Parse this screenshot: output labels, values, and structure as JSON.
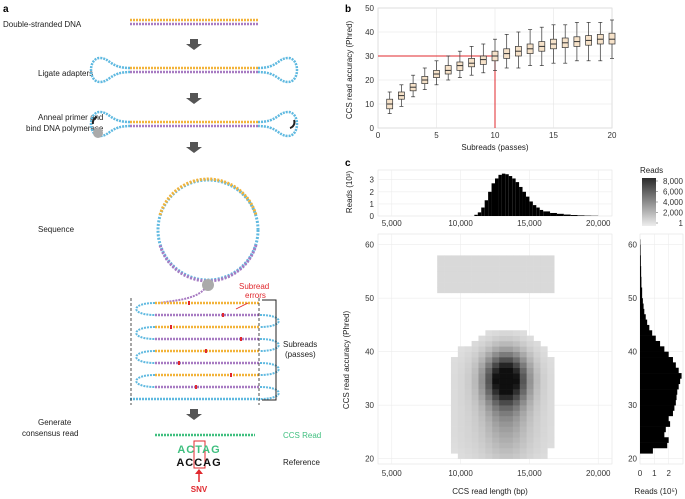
{
  "panel_labels": {
    "a": "a",
    "b": "b",
    "c": "c"
  },
  "panel_a": {
    "steps": [
      {
        "label": "Double-stranded DNA"
      },
      {
        "label": "Ligate adapters"
      },
      {
        "label_line1": "Anneal primer and",
        "label_line2": "bind DNA polymerase"
      },
      {
        "label": "Sequence"
      },
      {
        "label_line1": "Generate",
        "label_line2": "consensus read"
      }
    ],
    "subread_errors_line1": "Subread",
    "subread_errors_line2": "errors",
    "subreads_line1": "Subreads",
    "subreads_line2": "(passes)",
    "ccs_read_label": "CCS Read",
    "reference_label": "Reference",
    "ccs_seq": "ACTAG",
    "ref_seq": "ACCAG",
    "snv_label": "SNV",
    "colors": {
      "adapter": "#5fb9e0",
      "strand_top": "#f2b33a",
      "strand_bottom": "#a77ac2",
      "ccs": "#3fbf7f",
      "error": "#e0282e"
    }
  },
  "chart_data": [
    {
      "id": "b",
      "type": "box",
      "xlabel": "Subreads (passes)",
      "ylabel": "CCS read accuracy (Phred)",
      "xlim": [
        0,
        20
      ],
      "ylim": [
        0,
        50
      ],
      "xticks": [
        0,
        5,
        10,
        15,
        20
      ],
      "yticks": [
        0,
        10,
        20,
        30,
        40,
        50
      ],
      "reference_line": {
        "x": 10,
        "y": 30
      },
      "boxes": [
        {
          "x": 1,
          "low": 6,
          "q1": 8,
          "median": 10,
          "q3": 12,
          "high": 15
        },
        {
          "x": 2,
          "low": 9,
          "q1": 12,
          "median": 13.5,
          "q3": 15,
          "high": 18
        },
        {
          "x": 3,
          "low": 13,
          "q1": 15.5,
          "median": 17,
          "q3": 18.5,
          "high": 22
        },
        {
          "x": 4,
          "low": 16,
          "q1": 18.5,
          "median": 20,
          "q3": 21.5,
          "high": 25
        },
        {
          "x": 5,
          "low": 18,
          "q1": 21,
          "median": 22.5,
          "q3": 24,
          "high": 28
        },
        {
          "x": 6,
          "low": 20,
          "q1": 22.5,
          "median": 24,
          "q3": 26,
          "high": 30
        },
        {
          "x": 7,
          "low": 21,
          "q1": 24,
          "median": 26,
          "q3": 27.5,
          "high": 32
        },
        {
          "x": 8,
          "low": 22,
          "q1": 25.5,
          "median": 27,
          "q3": 29,
          "high": 34
        },
        {
          "x": 9,
          "low": 23,
          "q1": 26.5,
          "median": 28.5,
          "q3": 30,
          "high": 35
        },
        {
          "x": 10,
          "low": 24,
          "q1": 28,
          "median": 30,
          "q3": 32,
          "high": 37
        },
        {
          "x": 11,
          "low": 25,
          "q1": 29,
          "median": 31,
          "q3": 33,
          "high": 39
        },
        {
          "x": 12,
          "low": 25,
          "q1": 30,
          "median": 32,
          "q3": 34,
          "high": 40
        },
        {
          "x": 13,
          "low": 26,
          "q1": 31,
          "median": 33,
          "q3": 35,
          "high": 41
        },
        {
          "x": 14,
          "low": 26,
          "q1": 32,
          "median": 34,
          "q3": 36,
          "high": 42
        },
        {
          "x": 15,
          "low": 27,
          "q1": 33,
          "median": 35,
          "q3": 37,
          "high": 43
        },
        {
          "x": 16,
          "low": 27,
          "q1": 33.5,
          "median": 35.5,
          "q3": 37.5,
          "high": 43
        },
        {
          "x": 17,
          "low": 28,
          "q1": 34,
          "median": 36,
          "q3": 38,
          "high": 44
        },
        {
          "x": 18,
          "low": 28,
          "q1": 34.5,
          "median": 36.5,
          "q3": 38.5,
          "high": 44
        },
        {
          "x": 19,
          "low": 28,
          "q1": 35,
          "median": 37,
          "q3": 39,
          "high": 44
        },
        {
          "x": 20,
          "low": 29,
          "q1": 35,
          "median": 37,
          "q3": 39.5,
          "high": 45
        }
      ]
    },
    {
      "id": "c-top",
      "type": "histogram",
      "ylabel": "Reads (10³)",
      "xlim": [
        4000,
        21000
      ],
      "ylim": [
        0,
        3.8
      ],
      "xticks": [
        5000,
        10000,
        15000,
        20000
      ],
      "xticklabels": [
        "5,000",
        "10,000",
        "15,000",
        "20,000"
      ],
      "yticks": [
        0,
        1,
        2,
        3
      ],
      "x": [
        11000,
        11250,
        11500,
        11750,
        12000,
        12250,
        12500,
        12750,
        13000,
        13250,
        13500,
        13750,
        14000,
        14250,
        14500,
        14750,
        15000,
        15250,
        15500,
        15750,
        16000,
        16500,
        17000,
        17500,
        18000,
        18500,
        19000,
        19500
      ],
      "values": [
        0.1,
        0.3,
        0.7,
        1.3,
        2.0,
        2.7,
        3.1,
        3.4,
        3.5,
        3.45,
        3.3,
        3.1,
        2.8,
        2.4,
        2.0,
        1.6,
        1.2,
        0.9,
        0.7,
        0.5,
        0.38,
        0.25,
        0.18,
        0.12,
        0.08,
        0.05,
        0.03,
        0.02
      ]
    },
    {
      "id": "c-main",
      "type": "heatmap",
      "xlabel": "CCS read length (bp)",
      "ylabel": "CCS read accuracy (Phred)",
      "xlim": [
        4000,
        21000
      ],
      "ylim": [
        19,
        62
      ],
      "xticks": [
        5000,
        10000,
        15000,
        20000
      ],
      "xticklabels": [
        "5,000",
        "10,000",
        "15,000",
        "20,000"
      ],
      "yticks": [
        20,
        30,
        40,
        50,
        60
      ],
      "legend": {
        "title": "Reads",
        "ticks": [
          8000,
          6000,
          4000,
          2000,
          1
        ],
        "ticklabels": [
          "8,000",
          "6,000",
          "4,000",
          "2,000",
          "1"
        ]
      }
    },
    {
      "id": "c-right",
      "type": "histogram",
      "orientation": "horizontal",
      "xlabel": "Reads (10⁵)",
      "xlim": [
        0,
        3
      ],
      "ylim": [
        19,
        62
      ],
      "xticks": [
        0,
        1,
        2
      ],
      "yticks": [
        20,
        30,
        40,
        50,
        60
      ],
      "y": [
        21,
        22,
        23,
        24,
        25,
        26,
        27,
        28,
        29,
        30,
        31,
        32,
        33,
        34,
        35,
        36,
        37,
        38,
        39,
        40,
        41,
        42,
        43,
        44,
        45,
        46,
        47,
        48,
        49,
        50,
        52,
        54,
        56,
        58,
        60
      ],
      "values": [
        0.9,
        1.9,
        2.0,
        1.7,
        1.8,
        2.1,
        2.0,
        2.3,
        2.4,
        2.5,
        2.55,
        2.6,
        2.7,
        2.8,
        2.9,
        2.7,
        2.5,
        2.3,
        2.0,
        1.7,
        1.4,
        1.1,
        0.85,
        0.65,
        0.5,
        0.4,
        0.3,
        0.25,
        0.2,
        0.15,
        0.1,
        0.08,
        0.06,
        0.04,
        0.02
      ]
    }
  ]
}
